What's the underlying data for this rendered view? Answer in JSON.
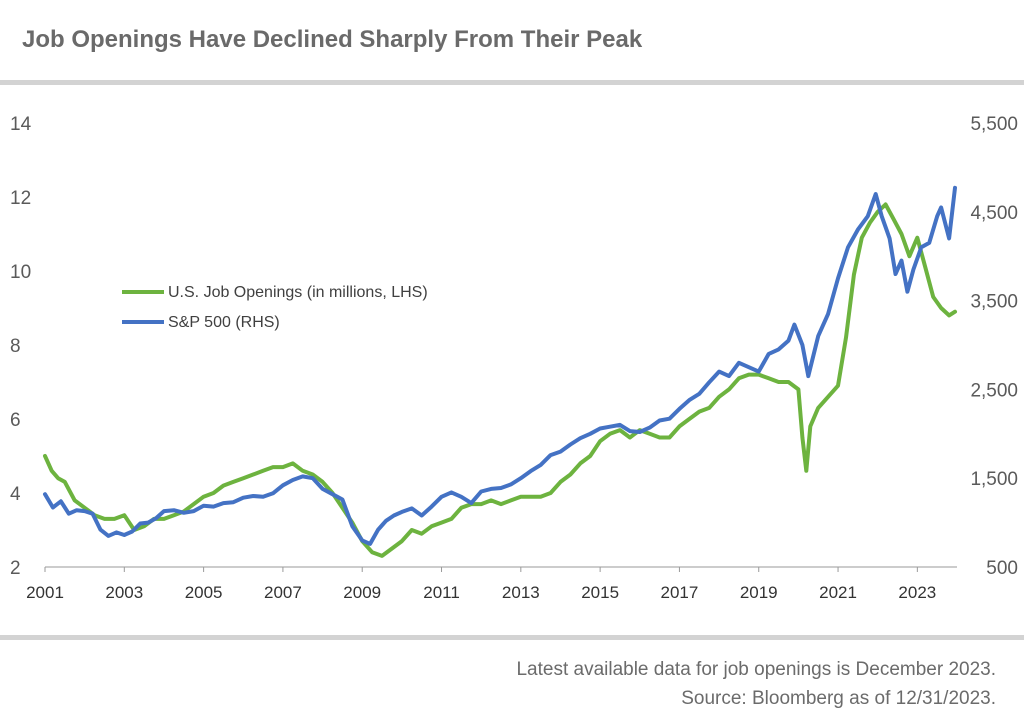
{
  "header": {
    "title": "Job Openings Have Declined Sharply From Their Peak"
  },
  "footer": {
    "line1": "Latest available data for job openings is December 2023.",
    "line2": "Source: Bloomberg as of 12/31/2023."
  },
  "colors": {
    "job_openings": "#6db33f",
    "sp500": "#4472c4",
    "axis": "#9a9a9a",
    "rule": "#d3d3d3"
  },
  "chart_data": {
    "type": "line",
    "title": "Job Openings Have Declined Sharply From Their Peak",
    "xlabel": "",
    "ylabel_left": "",
    "ylabel_right": "",
    "x_ticks": [
      "2001",
      "2003",
      "2005",
      "2007",
      "2009",
      "2011",
      "2013",
      "2015",
      "2017",
      "2019",
      "2021",
      "2023"
    ],
    "x_range": [
      2001.0,
      2024.0
    ],
    "y_left": {
      "ticks": [
        "2",
        "4",
        "6",
        "8",
        "10",
        "12",
        "14"
      ],
      "tick_values": [
        2,
        4,
        6,
        8,
        10,
        12,
        14
      ],
      "range": [
        2,
        14
      ]
    },
    "y_right": {
      "ticks": [
        "500",
        "1,500",
        "2,500",
        "3,500",
        "4,500",
        "5,500"
      ],
      "tick_values": [
        500,
        1500,
        2500,
        3500,
        4500,
        5500
      ],
      "range": [
        500,
        5500
      ]
    },
    "grid": false,
    "legend_position": "left-middle",
    "series": [
      {
        "name": "U.S. Job Openings (in millions, LHS)",
        "axis": "left",
        "color": "#6db33f",
        "x": [
          2001.0,
          2001.17,
          2001.33,
          2001.5,
          2001.75,
          2002.0,
          2002.25,
          2002.5,
          2002.75,
          2003.0,
          2003.25,
          2003.5,
          2003.75,
          2004.0,
          2004.25,
          2004.5,
          2004.75,
          2005.0,
          2005.25,
          2005.5,
          2005.75,
          2006.0,
          2006.25,
          2006.5,
          2006.75,
          2007.0,
          2007.25,
          2007.5,
          2007.75,
          2008.0,
          2008.25,
          2008.5,
          2008.75,
          2009.0,
          2009.25,
          2009.5,
          2009.75,
          2010.0,
          2010.25,
          2010.5,
          2010.75,
          2011.0,
          2011.25,
          2011.5,
          2011.75,
          2012.0,
          2012.25,
          2012.5,
          2012.75,
          2013.0,
          2013.25,
          2013.5,
          2013.75,
          2014.0,
          2014.25,
          2014.5,
          2014.75,
          2015.0,
          2015.25,
          2015.5,
          2015.75,
          2016.0,
          2016.25,
          2016.5,
          2016.75,
          2017.0,
          2017.25,
          2017.5,
          2017.75,
          2018.0,
          2018.25,
          2018.5,
          2018.75,
          2019.0,
          2019.25,
          2019.5,
          2019.75,
          2020.0,
          2020.1,
          2020.2,
          2020.3,
          2020.5,
          2020.75,
          2021.0,
          2021.2,
          2021.4,
          2021.6,
          2021.8,
          2022.0,
          2022.2,
          2022.4,
          2022.6,
          2022.8,
          2023.0,
          2023.2,
          2023.4,
          2023.6,
          2023.8,
          2023.95
        ],
        "values": [
          5.0,
          4.6,
          4.4,
          4.3,
          3.8,
          3.6,
          3.4,
          3.3,
          3.3,
          3.4,
          3.0,
          3.1,
          3.3,
          3.3,
          3.4,
          3.5,
          3.7,
          3.9,
          4.0,
          4.2,
          4.3,
          4.4,
          4.5,
          4.6,
          4.7,
          4.7,
          4.8,
          4.6,
          4.5,
          4.3,
          4.0,
          3.6,
          3.2,
          2.7,
          2.4,
          2.3,
          2.5,
          2.7,
          3.0,
          2.9,
          3.1,
          3.2,
          3.3,
          3.6,
          3.7,
          3.7,
          3.8,
          3.7,
          3.8,
          3.9,
          3.9,
          3.9,
          4.0,
          4.3,
          4.5,
          4.8,
          5.0,
          5.4,
          5.6,
          5.7,
          5.5,
          5.7,
          5.6,
          5.5,
          5.5,
          5.8,
          6.0,
          6.2,
          6.3,
          6.6,
          6.8,
          7.1,
          7.2,
          7.2,
          7.1,
          7.0,
          7.0,
          6.8,
          5.5,
          4.6,
          5.8,
          6.3,
          6.6,
          6.9,
          8.2,
          9.9,
          10.9,
          11.3,
          11.6,
          11.8,
          11.4,
          11.0,
          10.4,
          10.9,
          10.1,
          9.3,
          9.0,
          8.8,
          8.9
        ]
      },
      {
        "name": "S&P 500 (RHS)",
        "axis": "right",
        "color": "#4472c4",
        "x": [
          2001.0,
          2001.2,
          2001.4,
          2001.6,
          2001.8,
          2002.0,
          2002.2,
          2002.4,
          2002.6,
          2002.8,
          2003.0,
          2003.2,
          2003.4,
          2003.6,
          2003.8,
          2004.0,
          2004.25,
          2004.5,
          2004.75,
          2005.0,
          2005.25,
          2005.5,
          2005.75,
          2006.0,
          2006.25,
          2006.5,
          2006.75,
          2007.0,
          2007.25,
          2007.5,
          2007.75,
          2008.0,
          2008.25,
          2008.5,
          2008.75,
          2009.0,
          2009.2,
          2009.4,
          2009.6,
          2009.8,
          2010.0,
          2010.25,
          2010.5,
          2010.75,
          2011.0,
          2011.25,
          2011.5,
          2011.75,
          2012.0,
          2012.25,
          2012.5,
          2012.75,
          2013.0,
          2013.25,
          2013.5,
          2013.75,
          2014.0,
          2014.25,
          2014.5,
          2014.75,
          2015.0,
          2015.25,
          2015.5,
          2015.75,
          2016.0,
          2016.25,
          2016.5,
          2016.75,
          2017.0,
          2017.25,
          2017.5,
          2017.75,
          2018.0,
          2018.25,
          2018.5,
          2018.75,
          2019.0,
          2019.25,
          2019.5,
          2019.75,
          2019.9,
          2020.1,
          2020.25,
          2020.5,
          2020.75,
          2021.0,
          2021.25,
          2021.5,
          2021.75,
          2021.95,
          2022.1,
          2022.3,
          2022.45,
          2022.6,
          2022.75,
          2022.9,
          2023.1,
          2023.3,
          2023.5,
          2023.6,
          2023.8,
          2023.95
        ],
        "values": [
          1320,
          1170,
          1240,
          1100,
          1140,
          1130,
          1100,
          920,
          850,
          890,
          860,
          900,
          990,
          1000,
          1050,
          1130,
          1140,
          1110,
          1130,
          1190,
          1180,
          1220,
          1230,
          1280,
          1300,
          1290,
          1330,
          1420,
          1480,
          1520,
          1500,
          1380,
          1320,
          1260,
          960,
          800,
          760,
          920,
          1020,
          1080,
          1120,
          1160,
          1080,
          1180,
          1290,
          1340,
          1290,
          1220,
          1350,
          1380,
          1390,
          1430,
          1500,
          1580,
          1650,
          1760,
          1800,
          1880,
          1950,
          2000,
          2060,
          2080,
          2100,
          2030,
          2020,
          2070,
          2150,
          2170,
          2280,
          2380,
          2450,
          2580,
          2700,
          2650,
          2800,
          2750,
          2700,
          2900,
          2950,
          3050,
          3230,
          3000,
          2650,
          3100,
          3350,
          3750,
          4100,
          4300,
          4450,
          4700,
          4450,
          4200,
          3800,
          3950,
          3600,
          3850,
          4100,
          4150,
          4450,
          4550,
          4200,
          4770
        ]
      }
    ]
  }
}
